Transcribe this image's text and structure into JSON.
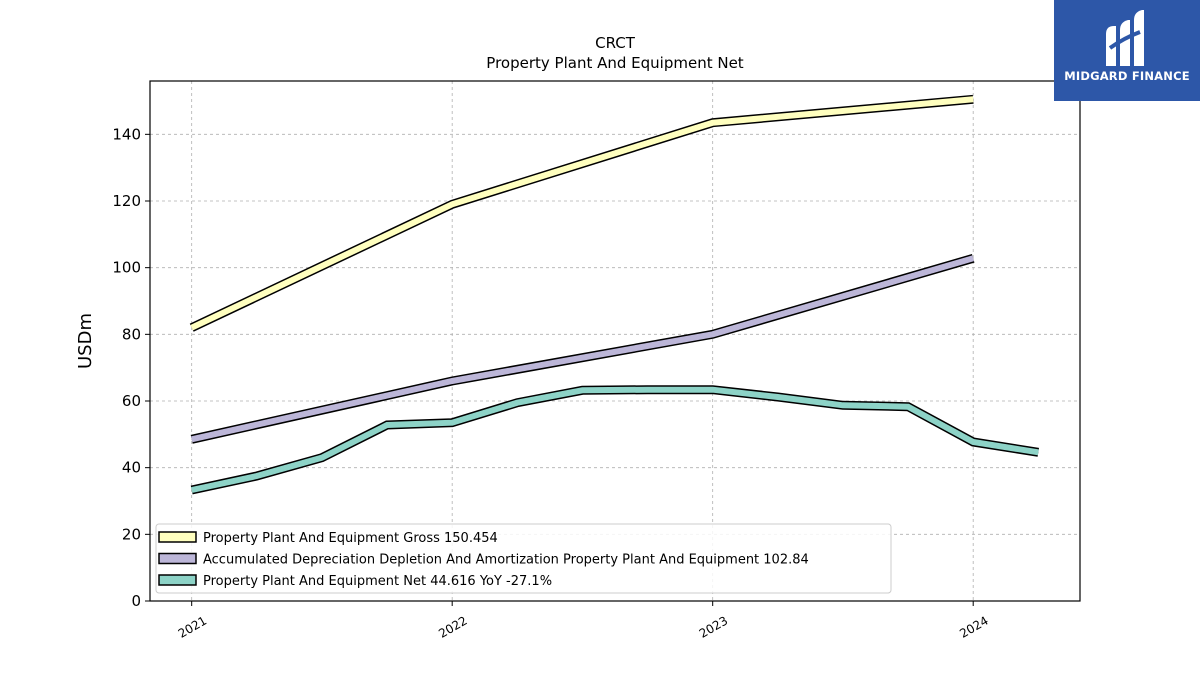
{
  "chart_data": {
    "type": "line",
    "title": "CRCT",
    "subtitle": "Property Plant And Equipment Net",
    "xlabel": "",
    "ylabel": "USDm",
    "xlim": [
      2020.84,
      2024.41
    ],
    "ylim": [
      0,
      156
    ],
    "x_ticks": [
      2021,
      2022,
      2023,
      2024
    ],
    "x_tick_labels": [
      "2021",
      "2022",
      "2023",
      "2024"
    ],
    "y_ticks": [
      0,
      20,
      40,
      60,
      80,
      100,
      120,
      140
    ],
    "y_tick_labels": [
      "0",
      "20",
      "40",
      "60",
      "80",
      "100",
      "120",
      "140"
    ],
    "grid": true,
    "legend_position": "lower-left",
    "series": [
      {
        "name": "Property Plant And Equipment Gross",
        "legend_label": "Property Plant And Equipment Gross  150.454",
        "color": "#ffffbf",
        "x": [
          2021.0,
          2022.0,
          2023.0,
          2024.0
        ],
        "values": [
          82.0,
          119.0,
          143.5,
          150.5
        ]
      },
      {
        "name": "Accumulated Depreciation Depletion And Amortization Property Plant And Equipment",
        "legend_label": "Accumulated Depreciation Depletion And Amortization Property Plant And Equipment  102.84",
        "color": "#bcb6d8",
        "x": [
          2021.0,
          2022.0,
          2023.0,
          2024.0
        ],
        "values": [
          48.5,
          66.0,
          80.0,
          102.8
        ]
      },
      {
        "name": "Property Plant And Equipment Net",
        "legend_label": "Property Plant And Equipment Net  44.616 YoY -27.1%",
        "color": "#8dd3c7",
        "x": [
          2021.0,
          2021.25,
          2021.5,
          2021.75,
          2022.0,
          2022.25,
          2022.5,
          2022.75,
          2023.0,
          2023.25,
          2023.5,
          2023.75,
          2024.0,
          2024.25
        ],
        "values": [
          33.3,
          37.5,
          43.0,
          52.8,
          53.5,
          59.5,
          63.2,
          63.4,
          63.4,
          61.2,
          58.7,
          58.3,
          47.7,
          44.6
        ]
      }
    ]
  },
  "logo": {
    "text": "MIDGARD FINANCE",
    "background": "#2d57a8",
    "icon": "midgard-m-logo-icon"
  }
}
